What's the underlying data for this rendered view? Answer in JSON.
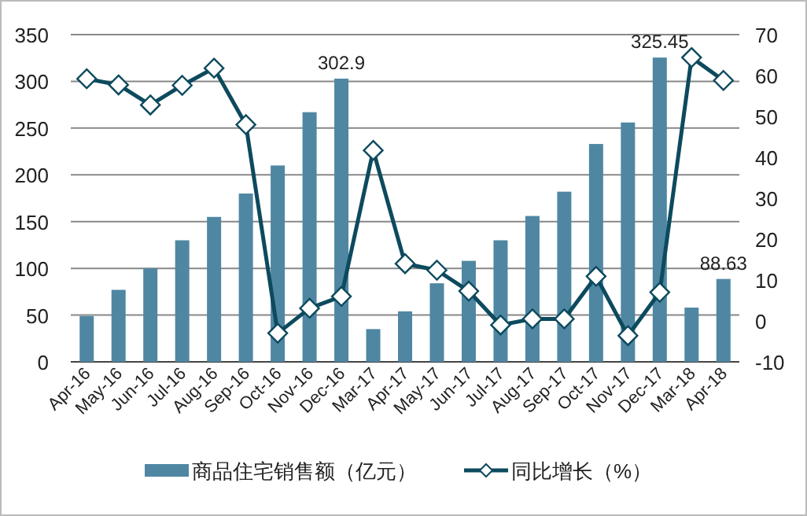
{
  "chart_data": {
    "type": "bar",
    "categories": [
      "Apr-16",
      "May-16",
      "Jun-16",
      "Jul-16",
      "Aug-16",
      "Sep-16",
      "Oct-16",
      "Nov-16",
      "Dec-16",
      "Mar-17",
      "Apr-17",
      "May-17",
      "Jun-17",
      "Jul-17",
      "Aug-17",
      "Sep-17",
      "Oct-17",
      "Nov-17",
      "Dec-17",
      "Mar-18",
      "Apr-18"
    ],
    "series": [
      {
        "name": "商品住宅销售额（亿元）",
        "color": "#4f87a3",
        "values": [
          49,
          77,
          100,
          130,
          155,
          180,
          210,
          267,
          302.9,
          35,
          54,
          84,
          108,
          130,
          156,
          182,
          233,
          256,
          325.45,
          58,
          88.63
        ],
        "value_labels": [
          null,
          null,
          null,
          null,
          null,
          null,
          null,
          null,
          "302.9",
          null,
          null,
          null,
          null,
          null,
          null,
          null,
          null,
          null,
          "325.45",
          null,
          "88.63"
        ]
      },
      {
        "name": "同比增长（%）",
        "type": "line",
        "axis": "y2",
        "color": "#0d4a5e",
        "marker": "diamond",
        "values": [
          59.2,
          57.7,
          52.8,
          57.6,
          61.8,
          48.0,
          -3.0,
          3.1,
          6.0,
          41.7,
          14.0,
          12.4,
          7.3,
          -1.0,
          0.5,
          0.5,
          10.9,
          -3.6,
          7.0,
          64.4,
          58.8
        ]
      }
    ],
    "ylim": [
      0,
      350
    ],
    "yticks": [
      0,
      50,
      100,
      150,
      200,
      250,
      300,
      350
    ],
    "y2lim": [
      -10,
      70
    ],
    "y2ticks": [
      -10,
      0,
      10,
      20,
      30,
      40,
      50,
      60,
      70
    ],
    "grid": "y",
    "legend": "bottom"
  }
}
